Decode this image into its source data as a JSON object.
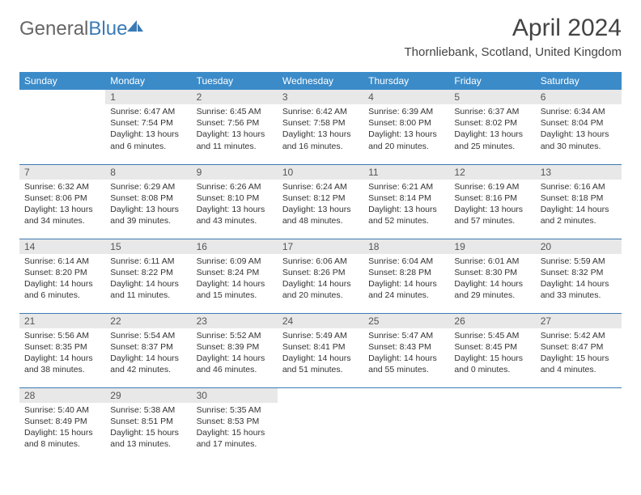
{
  "logo": {
    "general": "General",
    "blue": "Blue"
  },
  "title": "April 2024",
  "location": "Thornliebank, Scotland, United Kingdom",
  "colors": {
    "header_bg": "#3b8bc9",
    "header_fg": "#ffffff",
    "daynum_bg": "#e8e8e8",
    "row_divider": "#3b7ab5",
    "logo_blue": "#3b7ab5",
    "logo_gray": "#666666"
  },
  "weekdays": [
    "Sunday",
    "Monday",
    "Tuesday",
    "Wednesday",
    "Thursday",
    "Friday",
    "Saturday"
  ],
  "weeks": [
    [
      null,
      {
        "n": "1",
        "sr": "6:47 AM",
        "ss": "7:54 PM",
        "dl": "13 hours and 6 minutes."
      },
      {
        "n": "2",
        "sr": "6:45 AM",
        "ss": "7:56 PM",
        "dl": "13 hours and 11 minutes."
      },
      {
        "n": "3",
        "sr": "6:42 AM",
        "ss": "7:58 PM",
        "dl": "13 hours and 16 minutes."
      },
      {
        "n": "4",
        "sr": "6:39 AM",
        "ss": "8:00 PM",
        "dl": "13 hours and 20 minutes."
      },
      {
        "n": "5",
        "sr": "6:37 AM",
        "ss": "8:02 PM",
        "dl": "13 hours and 25 minutes."
      },
      {
        "n": "6",
        "sr": "6:34 AM",
        "ss": "8:04 PM",
        "dl": "13 hours and 30 minutes."
      }
    ],
    [
      {
        "n": "7",
        "sr": "6:32 AM",
        "ss": "8:06 PM",
        "dl": "13 hours and 34 minutes."
      },
      {
        "n": "8",
        "sr": "6:29 AM",
        "ss": "8:08 PM",
        "dl": "13 hours and 39 minutes."
      },
      {
        "n": "9",
        "sr": "6:26 AM",
        "ss": "8:10 PM",
        "dl": "13 hours and 43 minutes."
      },
      {
        "n": "10",
        "sr": "6:24 AM",
        "ss": "8:12 PM",
        "dl": "13 hours and 48 minutes."
      },
      {
        "n": "11",
        "sr": "6:21 AM",
        "ss": "8:14 PM",
        "dl": "13 hours and 52 minutes."
      },
      {
        "n": "12",
        "sr": "6:19 AM",
        "ss": "8:16 PM",
        "dl": "13 hours and 57 minutes."
      },
      {
        "n": "13",
        "sr": "6:16 AM",
        "ss": "8:18 PM",
        "dl": "14 hours and 2 minutes."
      }
    ],
    [
      {
        "n": "14",
        "sr": "6:14 AM",
        "ss": "8:20 PM",
        "dl": "14 hours and 6 minutes."
      },
      {
        "n": "15",
        "sr": "6:11 AM",
        "ss": "8:22 PM",
        "dl": "14 hours and 11 minutes."
      },
      {
        "n": "16",
        "sr": "6:09 AM",
        "ss": "8:24 PM",
        "dl": "14 hours and 15 minutes."
      },
      {
        "n": "17",
        "sr": "6:06 AM",
        "ss": "8:26 PM",
        "dl": "14 hours and 20 minutes."
      },
      {
        "n": "18",
        "sr": "6:04 AM",
        "ss": "8:28 PM",
        "dl": "14 hours and 24 minutes."
      },
      {
        "n": "19",
        "sr": "6:01 AM",
        "ss": "8:30 PM",
        "dl": "14 hours and 29 minutes."
      },
      {
        "n": "20",
        "sr": "5:59 AM",
        "ss": "8:32 PM",
        "dl": "14 hours and 33 minutes."
      }
    ],
    [
      {
        "n": "21",
        "sr": "5:56 AM",
        "ss": "8:35 PM",
        "dl": "14 hours and 38 minutes."
      },
      {
        "n": "22",
        "sr": "5:54 AM",
        "ss": "8:37 PM",
        "dl": "14 hours and 42 minutes."
      },
      {
        "n": "23",
        "sr": "5:52 AM",
        "ss": "8:39 PM",
        "dl": "14 hours and 46 minutes."
      },
      {
        "n": "24",
        "sr": "5:49 AM",
        "ss": "8:41 PM",
        "dl": "14 hours and 51 minutes."
      },
      {
        "n": "25",
        "sr": "5:47 AM",
        "ss": "8:43 PM",
        "dl": "14 hours and 55 minutes."
      },
      {
        "n": "26",
        "sr": "5:45 AM",
        "ss": "8:45 PM",
        "dl": "15 hours and 0 minutes."
      },
      {
        "n": "27",
        "sr": "5:42 AM",
        "ss": "8:47 PM",
        "dl": "15 hours and 4 minutes."
      }
    ],
    [
      {
        "n": "28",
        "sr": "5:40 AM",
        "ss": "8:49 PM",
        "dl": "15 hours and 8 minutes."
      },
      {
        "n": "29",
        "sr": "5:38 AM",
        "ss": "8:51 PM",
        "dl": "15 hours and 13 minutes."
      },
      {
        "n": "30",
        "sr": "5:35 AM",
        "ss": "8:53 PM",
        "dl": "15 hours and 17 minutes."
      },
      null,
      null,
      null,
      null
    ]
  ],
  "labels": {
    "sunrise": "Sunrise:",
    "sunset": "Sunset:",
    "daylight": "Daylight:"
  }
}
